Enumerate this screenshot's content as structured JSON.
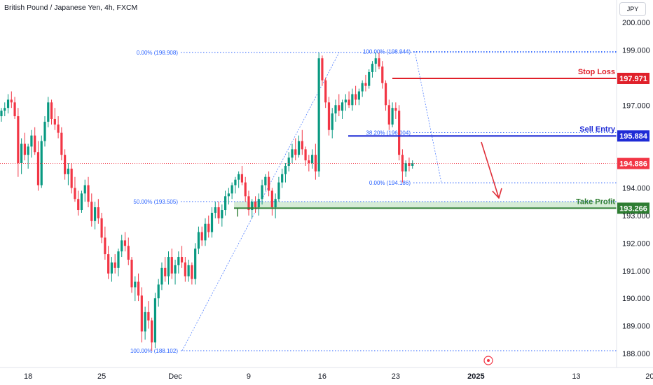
{
  "header": {
    "title": "British Pound / Japanese Yen, 4h, FXCM",
    "currency": "JPY"
  },
  "colors": {
    "up": "#089981",
    "down": "#f23645",
    "stop": "#e0202a",
    "entry": "#1e2bd6",
    "profit": "#2e7d32",
    "zone": "#c8e6c9",
    "fib": "#2962ff",
    "arrow": "#e0303a"
  },
  "chart_data": {
    "type": "candlestick",
    "symbol": "British Pound / Japanese Yen",
    "timeframe": "4h",
    "source": "FXCM",
    "ylim": [
      187.8,
      200.6
    ],
    "yticks": [
      "200.000",
      "199.000",
      "197.000",
      "194.000",
      "193.000",
      "192.000",
      "191.000",
      "190.000",
      "189.000",
      "188.000"
    ],
    "ytick_values": [
      200,
      199,
      197,
      194,
      193,
      192,
      191,
      190,
      189,
      188
    ],
    "xticks": [
      {
        "label": "18",
        "bar": 8,
        "bold": false
      },
      {
        "label": "25",
        "bar": 30,
        "bold": false
      },
      {
        "label": "Dec",
        "bar": 52,
        "bold": false
      },
      {
        "label": "9",
        "bar": 74,
        "bold": false
      },
      {
        "label": "16",
        "bar": 96,
        "bold": false
      },
      {
        "label": "23",
        "bar": 118,
        "bold": false
      },
      {
        "label": "2025",
        "bar": 142,
        "bold": true
      },
      {
        "label": "13",
        "bar": 172,
        "bold": false
      },
      {
        "label": "20",
        "bar": 194,
        "bold": false
      }
    ],
    "levels": [
      {
        "label": "Stop Loss",
        "value": "197.971",
        "price": 197.971,
        "color": "#e0202a"
      },
      {
        "label": "Sell Entry",
        "value": "195.884",
        "price": 195.884,
        "color": "#1e2bd6"
      },
      {
        "label": "Take Profit",
        "value": "193.266",
        "price": 193.266,
        "color": "#2e7d32"
      }
    ],
    "current_price": {
      "value": "194.886",
      "price": 194.886
    },
    "fib_left": [
      {
        "label": "0.00% (198.908)",
        "price": 198.908
      },
      {
        "label": "50.00% (193.505)",
        "price": 193.505
      },
      {
        "label": "100.00% (188.102)",
        "price": 188.102
      }
    ],
    "fib_right": [
      {
        "label": "100.00% (198.944)",
        "price": 198.944
      },
      {
        "label": "38.20% (196.004)",
        "price": 196.004
      },
      {
        "label": "0.00% (194.186)",
        "price": 194.186
      }
    ],
    "ohlc": [
      [
        196.6,
        196.9,
        196.4,
        196.8
      ],
      [
        196.8,
        197.1,
        196.6,
        196.9
      ],
      [
        196.9,
        197.4,
        196.7,
        197.2
      ],
      [
        197.2,
        197.5,
        196.9,
        197.1
      ],
      [
        197.1,
        197.3,
        196.5,
        196.6
      ],
      [
        196.6,
        196.9,
        194.4,
        194.9
      ],
      [
        194.9,
        195.8,
        194.5,
        195.6
      ],
      [
        195.6,
        196.0,
        195.0,
        195.2
      ],
      [
        195.2,
        195.6,
        194.7,
        195.5
      ],
      [
        195.5,
        196.1,
        195.1,
        195.9
      ],
      [
        195.9,
        196.2,
        195.2,
        195.3
      ],
      [
        195.3,
        195.7,
        193.9,
        194.1
      ],
      [
        194.1,
        195.9,
        194.0,
        195.7
      ],
      [
        195.7,
        196.6,
        195.5,
        196.4
      ],
      [
        196.4,
        197.3,
        196.2,
        197.1
      ],
      [
        197.1,
        197.2,
        196.3,
        196.5
      ],
      [
        196.5,
        196.9,
        196.1,
        196.3
      ],
      [
        196.3,
        196.6,
        195.8,
        196.0
      ],
      [
        196.0,
        196.2,
        195.0,
        195.2
      ],
      [
        195.2,
        195.4,
        194.3,
        194.5
      ],
      [
        194.5,
        194.9,
        194.1,
        194.7
      ],
      [
        194.7,
        194.9,
        193.8,
        194.0
      ],
      [
        194.0,
        194.4,
        193.5,
        193.6
      ],
      [
        193.6,
        193.9,
        193.0,
        193.2
      ],
      [
        193.2,
        193.9,
        193.1,
        193.8
      ],
      [
        193.8,
        194.3,
        193.5,
        194.1
      ],
      [
        194.1,
        194.4,
        193.3,
        193.5
      ],
      [
        193.5,
        193.8,
        192.6,
        192.8
      ],
      [
        192.8,
        193.5,
        192.5,
        193.3
      ],
      [
        193.3,
        193.6,
        192.7,
        192.9
      ],
      [
        192.9,
        193.1,
        192.0,
        192.2
      ],
      [
        192.2,
        192.6,
        191.4,
        191.6
      ],
      [
        191.6,
        191.9,
        190.7,
        190.9
      ],
      [
        190.9,
        191.5,
        190.6,
        191.3
      ],
      [
        191.3,
        191.6,
        190.9,
        191.1
      ],
      [
        191.1,
        191.8,
        190.8,
        191.7
      ],
      [
        191.7,
        192.3,
        191.5,
        192.1
      ],
      [
        192.1,
        192.4,
        191.7,
        191.9
      ],
      [
        191.9,
        192.2,
        191.2,
        191.4
      ],
      [
        191.4,
        191.5,
        190.2,
        190.4
      ],
      [
        190.4,
        190.8,
        189.9,
        190.6
      ],
      [
        190.6,
        190.9,
        189.9,
        190.1
      ],
      [
        190.1,
        190.4,
        188.4,
        188.8
      ],
      [
        188.8,
        189.7,
        188.5,
        189.5
      ],
      [
        189.5,
        189.9,
        188.9,
        189.2
      ],
      [
        189.2,
        189.3,
        188.1,
        188.4
      ],
      [
        188.4,
        190.2,
        188.2,
        190.0
      ],
      [
        190.0,
        190.7,
        189.7,
        190.5
      ],
      [
        190.5,
        191.3,
        190.3,
        191.1
      ],
      [
        191.1,
        191.5,
        190.6,
        190.8
      ],
      [
        190.8,
        191.7,
        190.5,
        191.5
      ],
      [
        191.5,
        191.8,
        190.7,
        190.9
      ],
      [
        190.9,
        191.4,
        190.5,
        191.2
      ],
      [
        191.2,
        191.7,
        190.9,
        191.5
      ],
      [
        191.5,
        191.9,
        191.1,
        191.3
      ],
      [
        191.3,
        191.5,
        190.6,
        190.8
      ],
      [
        190.8,
        191.4,
        190.6,
        191.2
      ],
      [
        191.2,
        191.3,
        190.5,
        190.7
      ],
      [
        190.7,
        192.0,
        190.5,
        191.8
      ],
      [
        191.8,
        192.6,
        191.6,
        192.4
      ],
      [
        192.4,
        192.6,
        191.9,
        192.1
      ],
      [
        192.1,
        192.9,
        191.9,
        192.7
      ],
      [
        192.7,
        193.0,
        192.2,
        192.4
      ],
      [
        192.4,
        193.3,
        192.2,
        193.1
      ],
      [
        193.1,
        193.5,
        192.9,
        193.3
      ],
      [
        193.3,
        193.5,
        192.7,
        192.9
      ],
      [
        192.9,
        193.4,
        192.6,
        193.2
      ],
      [
        193.2,
        193.9,
        193.0,
        193.7
      ],
      [
        193.7,
        194.0,
        193.4,
        193.8
      ],
      [
        193.8,
        194.2,
        193.6,
        194.1
      ],
      [
        194.1,
        194.4,
        193.8,
        194.3
      ],
      [
        194.3,
        194.6,
        194.0,
        194.5
      ],
      [
        194.5,
        194.8,
        194.1,
        194.2
      ],
      [
        194.2,
        194.4,
        193.5,
        193.7
      ],
      [
        193.7,
        193.9,
        193.0,
        193.2
      ],
      [
        193.2,
        193.6,
        192.9,
        193.5
      ],
      [
        193.5,
        193.7,
        193.1,
        193.3
      ],
      [
        193.3,
        193.8,
        193.0,
        193.6
      ],
      [
        193.6,
        194.3,
        193.4,
        194.1
      ],
      [
        194.1,
        194.5,
        193.9,
        194.4
      ],
      [
        194.4,
        194.6,
        193.7,
        193.9
      ],
      [
        193.9,
        194.0,
        193.0,
        193.3
      ],
      [
        193.3,
        193.8,
        192.9,
        193.6
      ],
      [
        193.6,
        194.4,
        193.5,
        194.2
      ],
      [
        194.2,
        194.7,
        194.0,
        194.5
      ],
      [
        194.5,
        194.9,
        194.2,
        194.8
      ],
      [
        194.8,
        195.3,
        194.6,
        195.1
      ],
      [
        195.1,
        195.6,
        194.9,
        195.4
      ],
      [
        195.4,
        195.8,
        195.0,
        195.2
      ],
      [
        195.2,
        195.9,
        195.1,
        195.7
      ],
      [
        195.7,
        196.1,
        195.2,
        195.4
      ],
      [
        195.4,
        195.5,
        194.8,
        195.0
      ],
      [
        195.0,
        195.2,
        194.6,
        194.9
      ],
      [
        194.9,
        195.4,
        194.7,
        195.2
      ],
      [
        195.2,
        195.6,
        194.3,
        194.6
      ],
      [
        194.6,
        198.9,
        194.4,
        198.7
      ],
      [
        198.7,
        198.8,
        197.7,
        197.9
      ],
      [
        197.9,
        198.0,
        196.9,
        197.1
      ],
      [
        197.1,
        197.3,
        195.9,
        196.1
      ],
      [
        196.1,
        196.9,
        195.8,
        196.7
      ],
      [
        196.7,
        197.2,
        196.4,
        197.0
      ],
      [
        197.0,
        197.4,
        196.6,
        196.8
      ],
      [
        196.8,
        197.2,
        196.5,
        197.1
      ],
      [
        197.1,
        197.4,
        196.8,
        197.2
      ],
      [
        197.2,
        197.5,
        196.9,
        197.0
      ],
      [
        197.0,
        197.6,
        196.8,
        197.4
      ],
      [
        197.4,
        197.7,
        197.0,
        197.2
      ],
      [
        197.2,
        197.6,
        197.0,
        197.5
      ],
      [
        197.5,
        197.9,
        197.3,
        197.8
      ],
      [
        197.8,
        198.1,
        197.5,
        197.7
      ],
      [
        197.7,
        198.3,
        197.6,
        198.2
      ],
      [
        198.2,
        198.6,
        198.0,
        198.5
      ],
      [
        198.5,
        198.9,
        198.2,
        198.7
      ],
      [
        198.7,
        198.9,
        198.3,
        198.4
      ],
      [
        198.4,
        198.6,
        197.6,
        197.8
      ],
      [
        197.8,
        197.9,
        196.8,
        197.0
      ],
      [
        197.0,
        197.2,
        196.1,
        196.3
      ],
      [
        196.3,
        197.1,
        196.2,
        196.9
      ],
      [
        196.9,
        197.1,
        196.5,
        196.8
      ],
      [
        196.8,
        197.0,
        195.0,
        195.2
      ],
      [
        195.2,
        195.4,
        194.2,
        194.6
      ],
      [
        194.6,
        195.0,
        194.4,
        194.9
      ],
      [
        194.9,
        195.1,
        194.6,
        194.8
      ],
      [
        194.8,
        195.0,
        194.7,
        194.9
      ]
    ]
  },
  "watermark_icon": "clock-target-icon"
}
